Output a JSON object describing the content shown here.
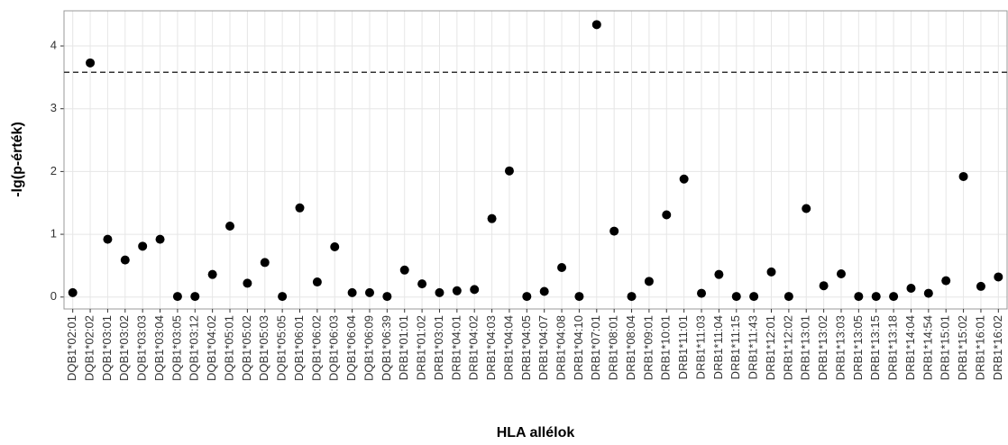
{
  "chart_data": {
    "type": "scatter",
    "x_label": "HLA allélok",
    "y_label": "-lg(p-érték)",
    "categories": [
      "DQB1*02:01",
      "DQB1*02:02",
      "DQB1*03:01",
      "DQB1*03:02",
      "DQB1*03:03",
      "DQB1*03:04",
      "DQB1*03:05",
      "DQB1*03:12",
      "DQB1*04:02",
      "DQB1*05:01",
      "DQB1*05:02",
      "DQB1*05:03",
      "DQB1*05:05",
      "DQB1*06:01",
      "DQB1*06:02",
      "DQB1*06:03",
      "DQB1*06:04",
      "DQB1*06:09",
      "DQB1*06:39",
      "DRB1*01:01",
      "DRB1*01:02",
      "DRB1*03:01",
      "DRB1*04:01",
      "DRB1*04:02",
      "DRB1*04:03",
      "DRB1*04:04",
      "DRB1*04:05",
      "DRB1*04:07",
      "DRB1*04:08",
      "DRB1*04:10",
      "DRB1*07:01",
      "DRB1*08:01",
      "DRB1*08:04",
      "DRB1*09:01",
      "DRB1*10:01",
      "DRB1*11:01",
      "DRB1*11:03",
      "DRB1*11:04",
      "DRB1*11:15",
      "DRB1*11:43",
      "DRB1*12:01",
      "DRB1*12:02",
      "DRB1*13:01",
      "DRB1*13:02",
      "DRB1*13:03",
      "DRB1*13:05",
      "DRB1*13:15",
      "DRB1*13:18",
      "DRB1*14:04",
      "DRB1*14:54",
      "DRB1*15:01",
      "DRB1*15:02",
      "DRB1*16:01",
      "DRB1*16:02"
    ],
    "values": [
      0.07,
      3.73,
      0.92,
      0.59,
      0.81,
      0.92,
      0.01,
      0.01,
      0.36,
      1.13,
      0.22,
      0.55,
      0.01,
      1.42,
      0.24,
      0.8,
      0.07,
      0.07,
      0.01,
      0.43,
      0.21,
      0.07,
      0.1,
      0.12,
      1.25,
      2.01,
      0.01,
      0.09,
      0.47,
      0.01,
      4.34,
      1.05,
      0.01,
      0.25,
      1.31,
      1.88,
      0.06,
      0.36,
      0.01,
      0.01,
      0.4,
      0.01,
      1.41,
      0.18,
      0.37,
      0.01,
      0.01,
      0.01,
      0.14,
      0.06,
      0.26,
      1.92,
      0.17,
      0.32
    ],
    "color": "#000000",
    "threshold": 3.58,
    "ylim": [
      -0.19,
      4.56
    ],
    "yticks": [
      0,
      1,
      2,
      3,
      4
    ],
    "grid": true
  }
}
